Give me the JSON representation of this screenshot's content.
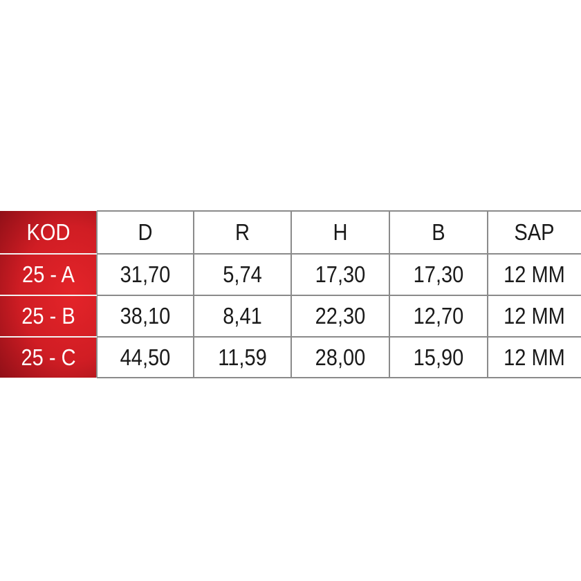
{
  "table": {
    "header": [
      "KOD",
      "D",
      "R",
      "H",
      "B",
      "SAP"
    ],
    "rows": [
      [
        "25 - A",
        "31,70",
        "5,74",
        "17,30",
        "17,30",
        "12 MM"
      ],
      [
        "25 - B",
        "38,10",
        "8,41",
        "22,30",
        "12,70",
        "12 MM"
      ],
      [
        "25 - C",
        "44,50",
        "11,59",
        "28,00",
        "15,90",
        "12 MM"
      ]
    ]
  }
}
